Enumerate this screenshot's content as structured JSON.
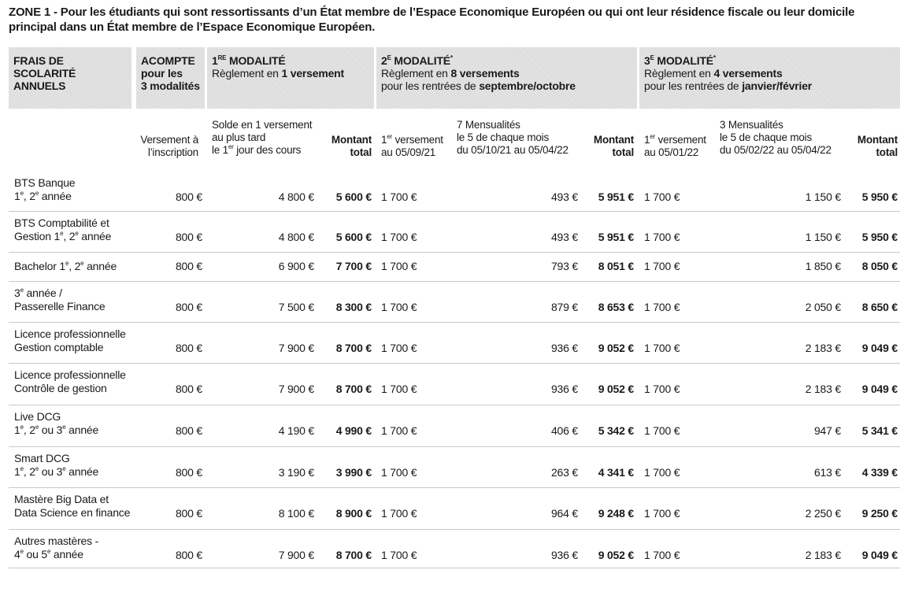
{
  "title": "ZONE 1 - Pour les étudiants qui sont ressortissants d’un État membre de l’Espace Economique Européen ou qui ont leur résidence fiscale ou leur domicile principal dans un État membre de l’Espace Economique Européen.",
  "header": {
    "frais": [
      "FRAIS DE",
      "SCOLARITÉ ANNUELS"
    ],
    "acompte": [
      "ACOMPTE",
      "pour les",
      "3 modalités"
    ],
    "m1": {
      "title": "1RE MODALITÉ",
      "t_pre": "1",
      "t_sup": "RE",
      "t_post": " MODALITÉ",
      "l1_pre": "Règlement en ",
      "l1_bold": "1 versement"
    },
    "m2": {
      "t_pre": "2",
      "t_sup": "E",
      "t_post": " MODALITÉ",
      "t_star": "*",
      "l1_pre": "Règlement en ",
      "l1_bold": "8 versements",
      "l2_pre": "pour les rentrées de ",
      "l2_bold": "septembre/octobre"
    },
    "m3": {
      "t_pre": "3",
      "t_sup": "E",
      "t_post": " MODALITÉ",
      "t_star": "*",
      "l1_pre": "Règlement en ",
      "l1_bold": "4 versements",
      "l2_pre": "pour les rentrées de ",
      "l2_bold": "janvier/février"
    }
  },
  "subheader": {
    "versement": [
      "Versement à",
      "l’inscription"
    ],
    "solde": [
      "Solde en 1 versement",
      "au plus tard",
      "le 1",
      "er",
      " jour des cours"
    ],
    "montant": [
      "Montant",
      "total"
    ],
    "m2_first": [
      "1",
      "er",
      " versement",
      "au 05/09/21"
    ],
    "m2_mens": [
      "7 Mensualités",
      "le 5 de chaque mois",
      "du 05/10/21 au 05/04/22"
    ],
    "m3_first": [
      "1",
      "er",
      " versement",
      "au 05/01/22"
    ],
    "m3_mens": [
      "3 Mensualités",
      "le 5 de chaque mois",
      "du 05/02/22 au 05/04/22"
    ]
  },
  "rows": [
    {
      "l1": "BTS Banque",
      "l2": [
        [
          "1",
          "e"
        ],
        [
          ", 2",
          "e"
        ],
        [
          " année",
          ""
        ]
      ],
      "acompte": "800 €",
      "solde": "4 800 €",
      "total1": "5 600 €",
      "m2_first": "1 700 €",
      "m2_mens": "493 €",
      "total2": "5 951 €",
      "m3_first": "1 700 €",
      "m3_mens": "1 150 €",
      "total3": "5 950 €"
    },
    {
      "l1": "BTS Comptabilité et",
      "l2": [
        [
          "Gestion  1",
          "e"
        ],
        [
          ", 2",
          "e"
        ],
        [
          " année",
          ""
        ]
      ],
      "acompte": "800 €",
      "solde": "4 800 €",
      "total1": "5 600 €",
      "m2_first": "1 700 €",
      "m2_mens": "493 €",
      "total2": "5 951 €",
      "m3_first": "1 700 €",
      "m3_mens": "1 150 €",
      "total3": "5 950 €"
    },
    {
      "l1": "",
      "l2": [
        [
          "Bachelor 1",
          "e"
        ],
        [
          ", 2",
          "e"
        ],
        [
          " année",
          ""
        ]
      ],
      "acompte": "800 €",
      "solde": "6 900 €",
      "total1": "7 700 €",
      "m2_first": "1 700 €",
      "m2_mens": "793 €",
      "total2": "8 051 €",
      "m3_first": "1 700 €",
      "m3_mens": "1 850 €",
      "total3": "8 050 €"
    },
    {
      "l1": [
        [
          "3",
          "e"
        ],
        [
          " année /",
          ""
        ]
      ],
      "l2": [
        [
          "Passerelle Finance",
          ""
        ]
      ],
      "acompte": "800 €",
      "solde": "7 500 €",
      "total1": "8 300 €",
      "m2_first": "1 700 €",
      "m2_mens": "879 €",
      "total2": "8 653 €",
      "m3_first": "1 700 €",
      "m3_mens": "2 050 €",
      "total3": "8 650 €"
    },
    {
      "l1": "Licence professionnelle",
      "l2": [
        [
          "Gestion comptable",
          ""
        ]
      ],
      "acompte": "800 €",
      "solde": "7 900 €",
      "total1": "8 700 €",
      "m2_first": "1 700 €",
      "m2_mens": "936 €",
      "total2": "9 052 €",
      "m3_first": "1 700 €",
      "m3_mens": "2 183 €",
      "total3": "9 049 €"
    },
    {
      "l1": "Licence professionnelle",
      "l2": [
        [
          "Contrôle de gestion",
          ""
        ]
      ],
      "acompte": "800 €",
      "solde": "7 900 €",
      "total1": "8 700 €",
      "m2_first": "1 700 €",
      "m2_mens": "936 €",
      "total2": "9 052 €",
      "m3_first": "1 700 €",
      "m3_mens": "2 183 €",
      "total3": "9 049 €"
    },
    {
      "l1": "Live DCG",
      "l2": [
        [
          "1",
          "e"
        ],
        [
          ", 2",
          "e"
        ],
        [
          " ou 3",
          "e"
        ],
        [
          " année",
          ""
        ]
      ],
      "acompte": "800 €",
      "solde": "4 190 €",
      "total1": "4 990 €",
      "m2_first": "1 700 €",
      "m2_mens": "406 €",
      "total2": "5 342 €",
      "m3_first": "1 700 €",
      "m3_mens": "947 €",
      "total3": "5 341 €"
    },
    {
      "l1": "Smart DCG",
      "l2": [
        [
          "1",
          "e"
        ],
        [
          ", 2",
          "e"
        ],
        [
          " ou 3",
          "e"
        ],
        [
          " année",
          ""
        ]
      ],
      "acompte": "800 €",
      "solde": "3 190 €",
      "total1": "3 990 €",
      "m2_first": "1 700 €",
      "m2_mens": "263 €",
      "total2": "4 341 €",
      "m3_first": "1 700 €",
      "m3_mens": "613 €",
      "total3": "4 339 €"
    },
    {
      "l1": "Mastère Big Data et",
      "l2": [
        [
          "Data Science en finance",
          ""
        ]
      ],
      "acompte": "800 €",
      "solde": "8 100 €",
      "total1": "8 900 €",
      "m2_first": "1 700 €",
      "m2_mens": "964 €",
      "total2": "9 248 €",
      "m3_first": "1 700 €",
      "m3_mens": "2 250 €",
      "total3": "9 250 €"
    },
    {
      "l1": "Autres mastères -",
      "l2": [
        [
          "4",
          "e"
        ],
        [
          " ou 5",
          "e"
        ],
        [
          " année",
          ""
        ]
      ],
      "acompte": "800 €",
      "solde": "7 900 €",
      "total1": "8 700 €",
      "m2_first": "1 700 €",
      "m2_mens": "936 €",
      "total2": "9 052 €",
      "m3_first": "1 700 €",
      "m3_mens": "2 183 €",
      "total3": "9 049 €"
    }
  ]
}
